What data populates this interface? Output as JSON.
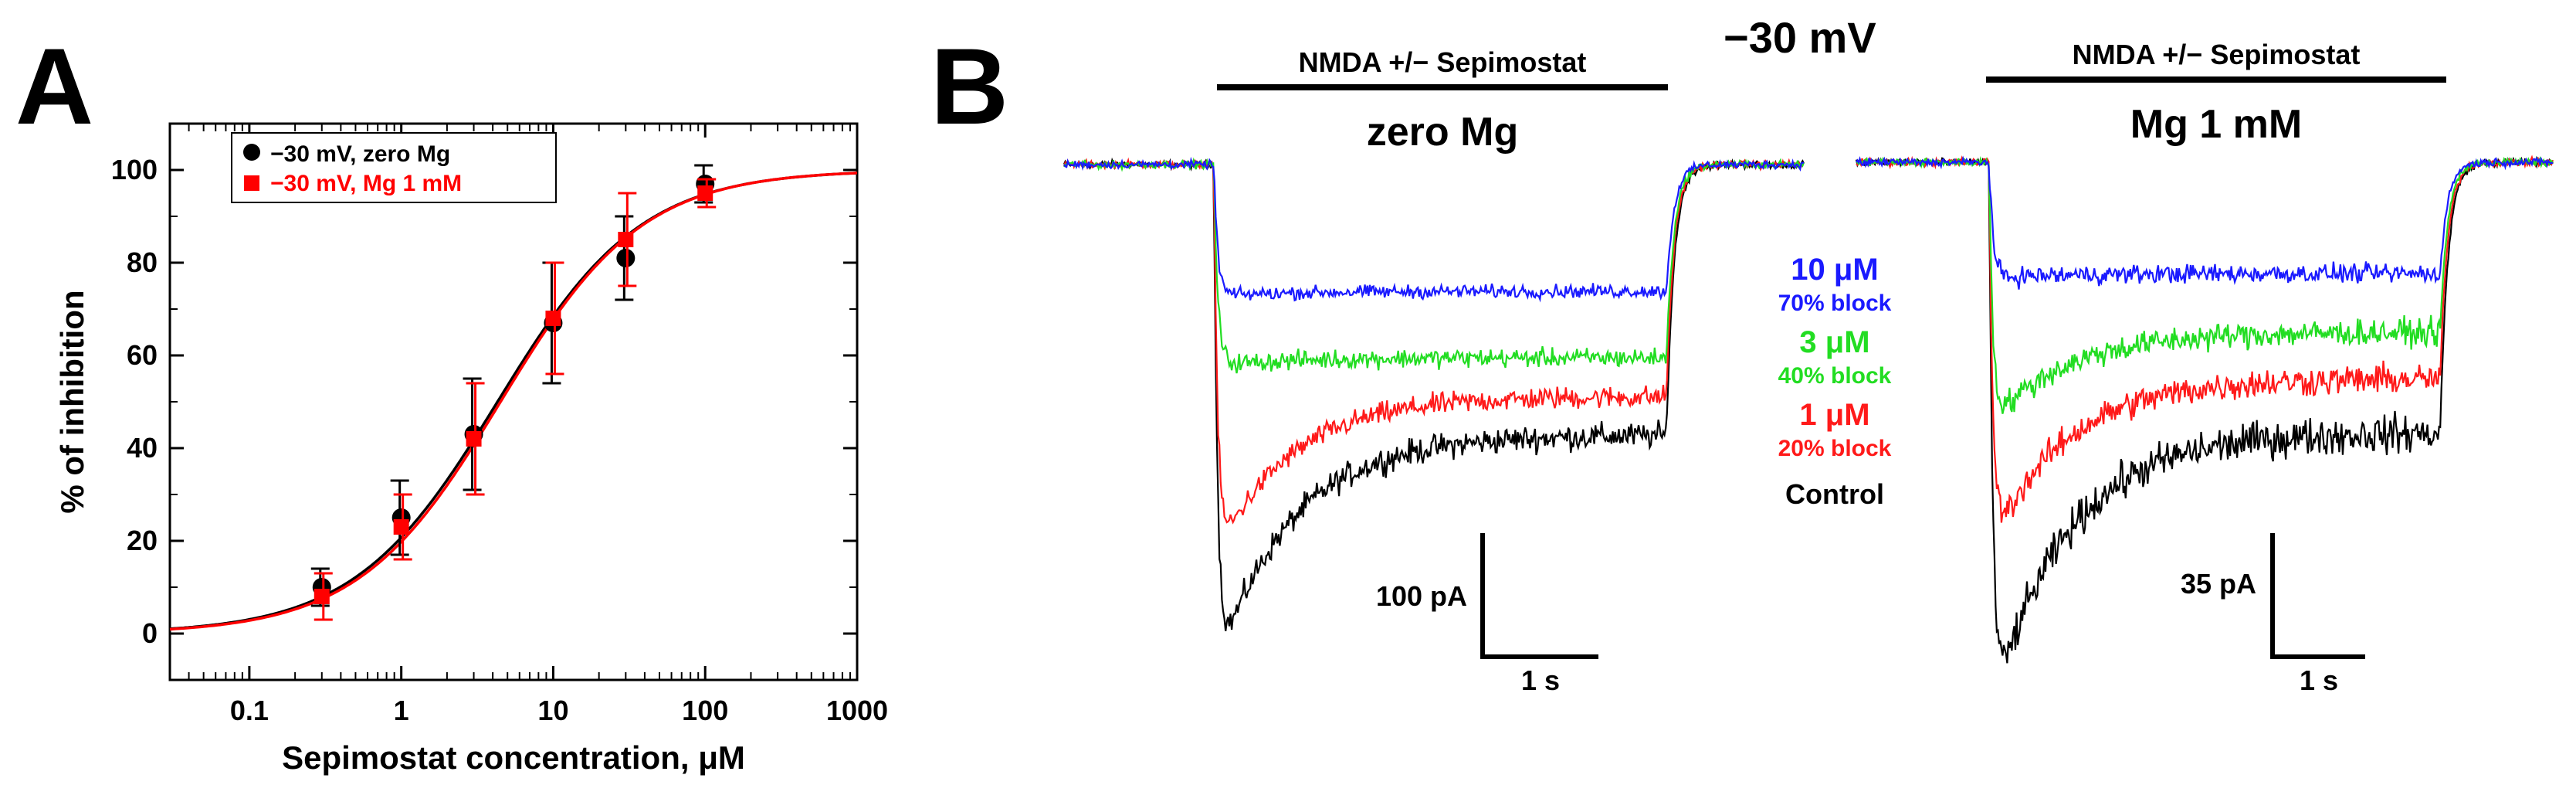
{
  "panel_labels": {
    "a": "A",
    "b": "B"
  },
  "panel_b": {
    "voltage_title": "−30 mV",
    "left": {
      "stim_label": "NMDA +/− Sepimostat",
      "condition": "zero Mg",
      "scale_current": "100 pA",
      "scale_time": "1 s"
    },
    "right": {
      "stim_label": "NMDA +/− Sepimostat",
      "condition": "Mg 1 mM",
      "scale_current": "35 pA",
      "scale_time": "1 s"
    },
    "concentrations": [
      {
        "conc": "10  μM",
        "block": "70% block",
        "color": "#1a1aff"
      },
      {
        "conc": "3  μM",
        "block": "40% block",
        "color": "#22dd22"
      },
      {
        "conc": "1  μM",
        "block": "20% block",
        "color": "#ff1a1a"
      },
      {
        "conc": "Control",
        "block": "",
        "color": "#000000"
      }
    ]
  },
  "chart_data": [
    {
      "type": "scatter",
      "title": "",
      "xlabel": "Sepimostat concentration, μM",
      "ylabel": "% of inhibition",
      "xscale": "log",
      "xlim": [
        0.03,
        1000
      ],
      "ylim": [
        -10,
        110
      ],
      "xticks": [
        0.1,
        1,
        10,
        100,
        1000
      ],
      "xtick_labels": [
        "0.1",
        "1",
        "10",
        "100",
        "1000"
      ],
      "yticks": [
        0,
        20,
        40,
        60,
        80,
        100
      ],
      "ytick_labels": [
        "0",
        "20",
        "40",
        "60",
        "80",
        "100"
      ],
      "legend_position": "top-left",
      "series": [
        {
          "name": "−30 mV, zero Mg",
          "color": "#000000",
          "marker": "circle",
          "x": [
            0.3,
            1,
            3,
            10,
            30,
            100
          ],
          "y": [
            10,
            25,
            43,
            67,
            81,
            97
          ],
          "err": [
            4,
            8,
            12,
            13,
            9,
            4
          ],
          "fit_ic50": 4.3,
          "fit_hill": 0.92
        },
        {
          "name": "−30 mV, Mg 1 mM",
          "color": "#ff0000",
          "marker": "square",
          "x": [
            0.3,
            1,
            3,
            10,
            30,
            100
          ],
          "y": [
            8,
            23,
            42,
            68,
            85,
            95
          ],
          "err": [
            5,
            7,
            12,
            12,
            10,
            3
          ],
          "fit_ic50": 4.5,
          "fit_hill": 0.93
        }
      ]
    },
    {
      "type": "line",
      "title": "zero Mg",
      "description_kind": "current traces",
      "series": [
        {
          "name": "10 μM",
          "color": "#1a1aff",
          "baseline": 0,
          "peak": -0.85,
          "steady": -0.82,
          "noise": 0.035
        },
        {
          "name": "3 μM",
          "color": "#22dd22",
          "baseline": 0,
          "peak": -1.3,
          "steady": -1.25,
          "noise": 0.05
        },
        {
          "name": "1 μM",
          "color": "#ff1a1a",
          "baseline": 0,
          "peak": -2.55,
          "steady": -1.5,
          "noise": 0.06
        },
        {
          "name": "Control",
          "color": "#000000",
          "baseline": 0,
          "peak": -3.3,
          "steady": -1.75,
          "noise": 0.07
        }
      ]
    },
    {
      "type": "line",
      "title": "Mg 1 mM",
      "description_kind": "current traces",
      "series": [
        {
          "name": "10 μM",
          "color": "#1a1aff",
          "baseline": 0,
          "peak": -0.75,
          "steady": -0.72,
          "noise": 0.05
        },
        {
          "name": "3 μM",
          "color": "#22dd22",
          "baseline": 0,
          "peak": -1.7,
          "steady": -1.1,
          "noise": 0.07
        },
        {
          "name": "1 μM",
          "color": "#ff1a1a",
          "baseline": 0,
          "peak": -2.5,
          "steady": -1.4,
          "noise": 0.08
        },
        {
          "name": "Control",
          "color": "#000000",
          "baseline": 0,
          "peak": -3.6,
          "steady": -1.75,
          "noise": 0.1
        }
      ]
    }
  ]
}
